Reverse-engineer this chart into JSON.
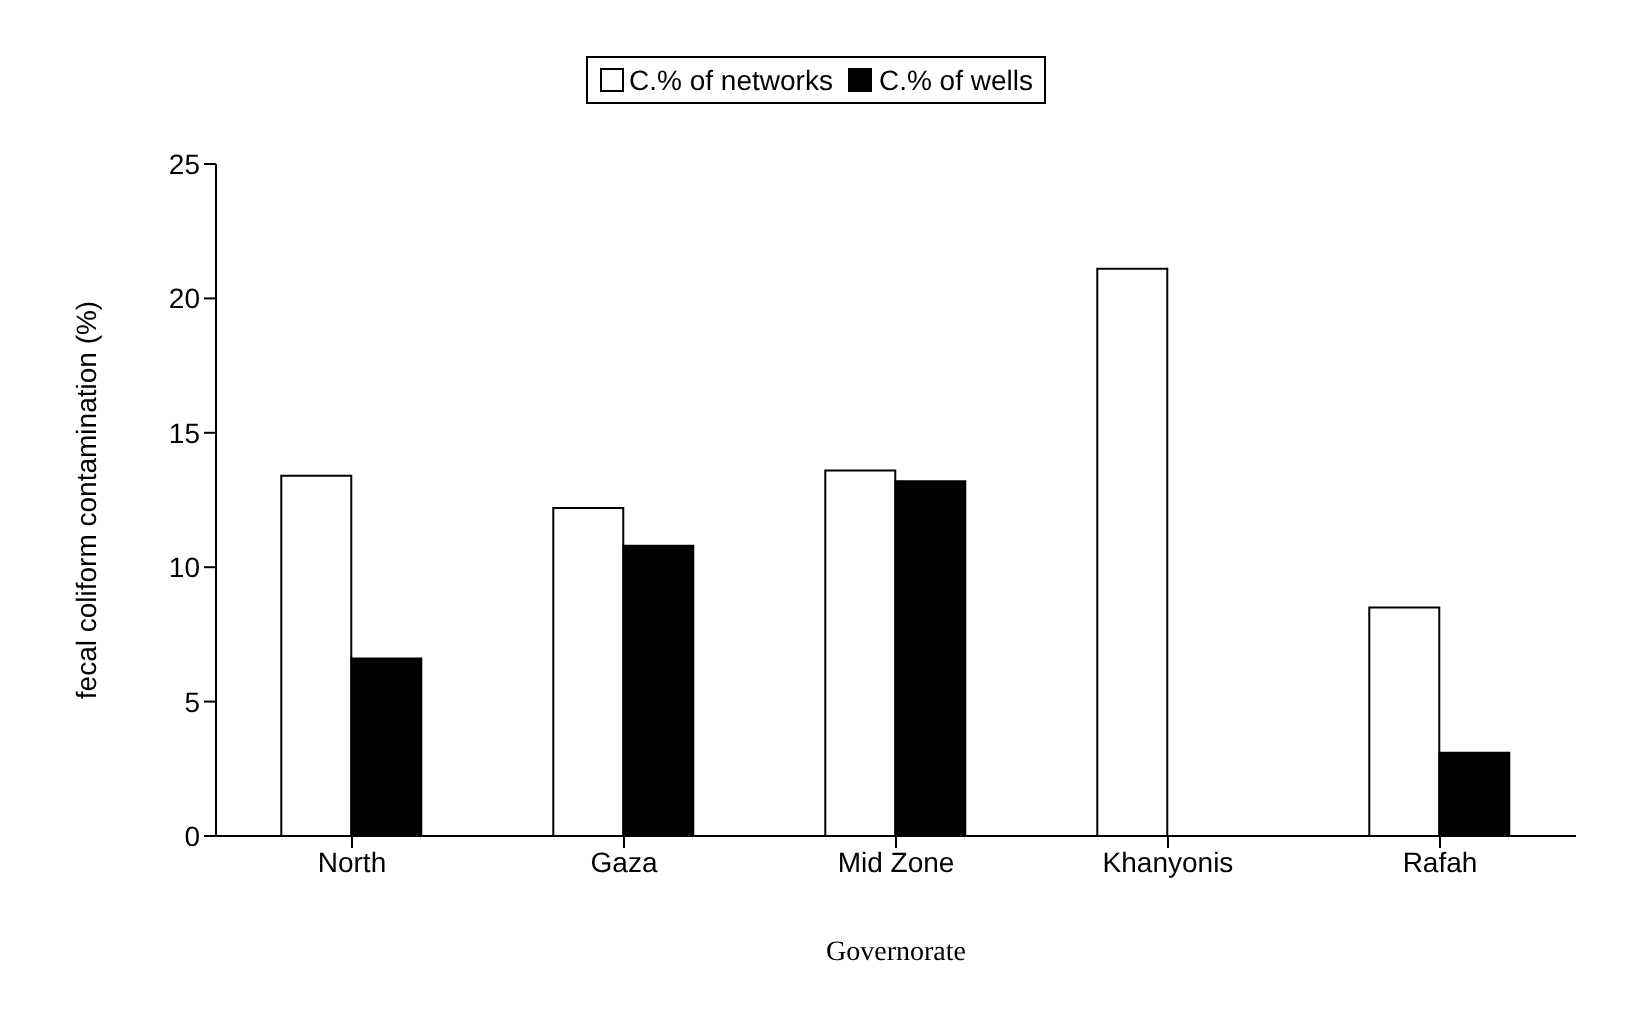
{
  "chart_data": {
    "type": "bar",
    "xlabel": "Governorate",
    "ylabel": "fecal coliform contamination (%)",
    "categories": [
      "North",
      "Gaza",
      "Mid Zone",
      "Khanyonis",
      "Rafah"
    ],
    "series": [
      {
        "name": "C.% of networks",
        "color": "#ffffff",
        "values": [
          13.4,
          12.2,
          13.6,
          21.1,
          8.5
        ]
      },
      {
        "name": "C.% of wells",
        "color": "#000000",
        "values": [
          6.6,
          10.8,
          13.2,
          0,
          3.1
        ]
      }
    ],
    "ylim": [
      0,
      25
    ],
    "yticks": [
      0,
      5,
      10,
      15,
      20,
      25
    ],
    "grid": false,
    "legend": "top"
  }
}
